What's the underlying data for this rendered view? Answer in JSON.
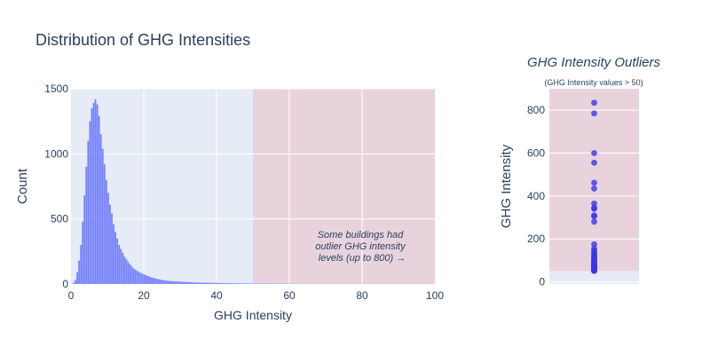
{
  "colors": {
    "plot_bg": "#e5ecf6",
    "outlier_zone": "#e8d3dd",
    "bar": "#636efa",
    "marker": "#3b34e8",
    "grid": "#ffffff",
    "text": "#2a3f5f"
  },
  "chart_data": [
    {
      "type": "bar",
      "title": "Distribution of GHG Intensities",
      "xlabel": "GHG Intensity",
      "ylabel": "Count",
      "xlim": [
        0,
        100
      ],
      "ylim": [
        0,
        1500
      ],
      "x_ticks": [
        "0",
        "20",
        "40",
        "60",
        "80",
        "100"
      ],
      "y_ticks": [
        "0",
        "500",
        "1000",
        "1500"
      ],
      "grid": true,
      "shaded_region": {
        "x_from": 50,
        "x_to": 100
      },
      "annotation": "Some buildings had outlier GHG intensity levels (up to 800) →",
      "bin_width": 0.5,
      "bin_start": 0,
      "values": [
        0,
        10,
        30,
        90,
        180,
        300,
        480,
        680,
        900,
        1100,
        1250,
        1350,
        1390,
        1420,
        1380,
        1290,
        1150,
        1040,
        920,
        800,
        700,
        610,
        540,
        460,
        400,
        350,
        300,
        270,
        240,
        210,
        190,
        170,
        150,
        135,
        120,
        110,
        100,
        92,
        85,
        78,
        72,
        66,
        60,
        55,
        50,
        46,
        42,
        39,
        36,
        33,
        30,
        28,
        26,
        24,
        23,
        22,
        21,
        20,
        19,
        18,
        18,
        17,
        16,
        15,
        15,
        14,
        13,
        13,
        12,
        12,
        11,
        11,
        10,
        10,
        10,
        9,
        9,
        9,
        8,
        8,
        8,
        7,
        7,
        7,
        7,
        6,
        6,
        6,
        6,
        5,
        5,
        5,
        5,
        5,
        4,
        4,
        4,
        4,
        4,
        4,
        3,
        3,
        3,
        3,
        3,
        3,
        3,
        3,
        3,
        2,
        2,
        2,
        2,
        2,
        2,
        2,
        2,
        2,
        2,
        2,
        2,
        2,
        1,
        1,
        1,
        1,
        1,
        1,
        1,
        1,
        1,
        1,
        1,
        1,
        1,
        1,
        1,
        1,
        1,
        1,
        1,
        1,
        1,
        1,
        1,
        1,
        1,
        1,
        1,
        1,
        1,
        1,
        1,
        1,
        1,
        1,
        1,
        1,
        1,
        1,
        1,
        1,
        1,
        1,
        1,
        1,
        1,
        1,
        1,
        1,
        1,
        1,
        1,
        1,
        1,
        1,
        1,
        1,
        1,
        1,
        1,
        1,
        1,
        1,
        1,
        1,
        1,
        1,
        1,
        1,
        1,
        1,
        1,
        1,
        1,
        1,
        1,
        1,
        1,
        1,
        1,
        1,
        1,
        1,
        1,
        1,
        1,
        1,
        1,
        1,
        1
      ]
    },
    {
      "type": "scatter",
      "title": "GHG Intensity Outliers",
      "subtitle": "(GHG Intensity values > 50)",
      "ylabel": "GHG Intensity",
      "ylim": [
        -10,
        900
      ],
      "y_ticks": [
        "0",
        "200",
        "400",
        "600",
        "800"
      ],
      "grid": true,
      "shaded_region": {
        "y_from": 50,
        "y_to": 900
      },
      "values": [
        835,
        785,
        600,
        555,
        462,
        435,
        365,
        345,
        340,
        310,
        305,
        280,
        175,
        155,
        145,
        140,
        130,
        125,
        120,
        115,
        110,
        105,
        100,
        95,
        92,
        88,
        85,
        82,
        80,
        78,
        75,
        72,
        70,
        68,
        66,
        64,
        62,
        60,
        58,
        56,
        55,
        54,
        53,
        52,
        51
      ]
    }
  ]
}
